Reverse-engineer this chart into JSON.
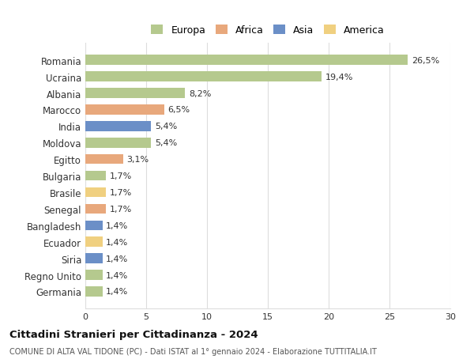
{
  "categories": [
    "Germania",
    "Regno Unito",
    "Siria",
    "Ecuador",
    "Bangladesh",
    "Senegal",
    "Brasile",
    "Bulgaria",
    "Egitto",
    "Moldova",
    "India",
    "Marocco",
    "Albania",
    "Ucraina",
    "Romania"
  ],
  "values": [
    1.4,
    1.4,
    1.4,
    1.4,
    1.4,
    1.7,
    1.7,
    1.7,
    3.1,
    5.4,
    5.4,
    6.5,
    8.2,
    19.4,
    26.5
  ],
  "labels": [
    "1,4%",
    "1,4%",
    "1,4%",
    "1,4%",
    "1,4%",
    "1,7%",
    "1,7%",
    "1,7%",
    "3,1%",
    "5,4%",
    "5,4%",
    "6,5%",
    "8,2%",
    "19,4%",
    "26,5%"
  ],
  "colors": [
    "#b5c98e",
    "#b5c98e",
    "#6b8fc7",
    "#f0d080",
    "#6b8fc7",
    "#e8a87c",
    "#f0d080",
    "#b5c98e",
    "#e8a87c",
    "#b5c98e",
    "#6b8fc7",
    "#e8a87c",
    "#b5c98e",
    "#b5c98e",
    "#b5c98e"
  ],
  "legend_labels": [
    "Europa",
    "Africa",
    "Asia",
    "America"
  ],
  "legend_colors": [
    "#b5c98e",
    "#e8a87c",
    "#6b8fc7",
    "#f0d080"
  ],
  "title": "Cittadini Stranieri per Cittadinanza - 2024",
  "subtitle": "COMUNE DI ALTA VAL TIDONE (PC) - Dati ISTAT al 1° gennaio 2024 - Elaborazione TUTTITALIA.IT",
  "xlim": [
    0,
    30
  ],
  "xticks": [
    0,
    5,
    10,
    15,
    20,
    25,
    30
  ],
  "background_color": "#ffffff",
  "grid_color": "#dddddd"
}
